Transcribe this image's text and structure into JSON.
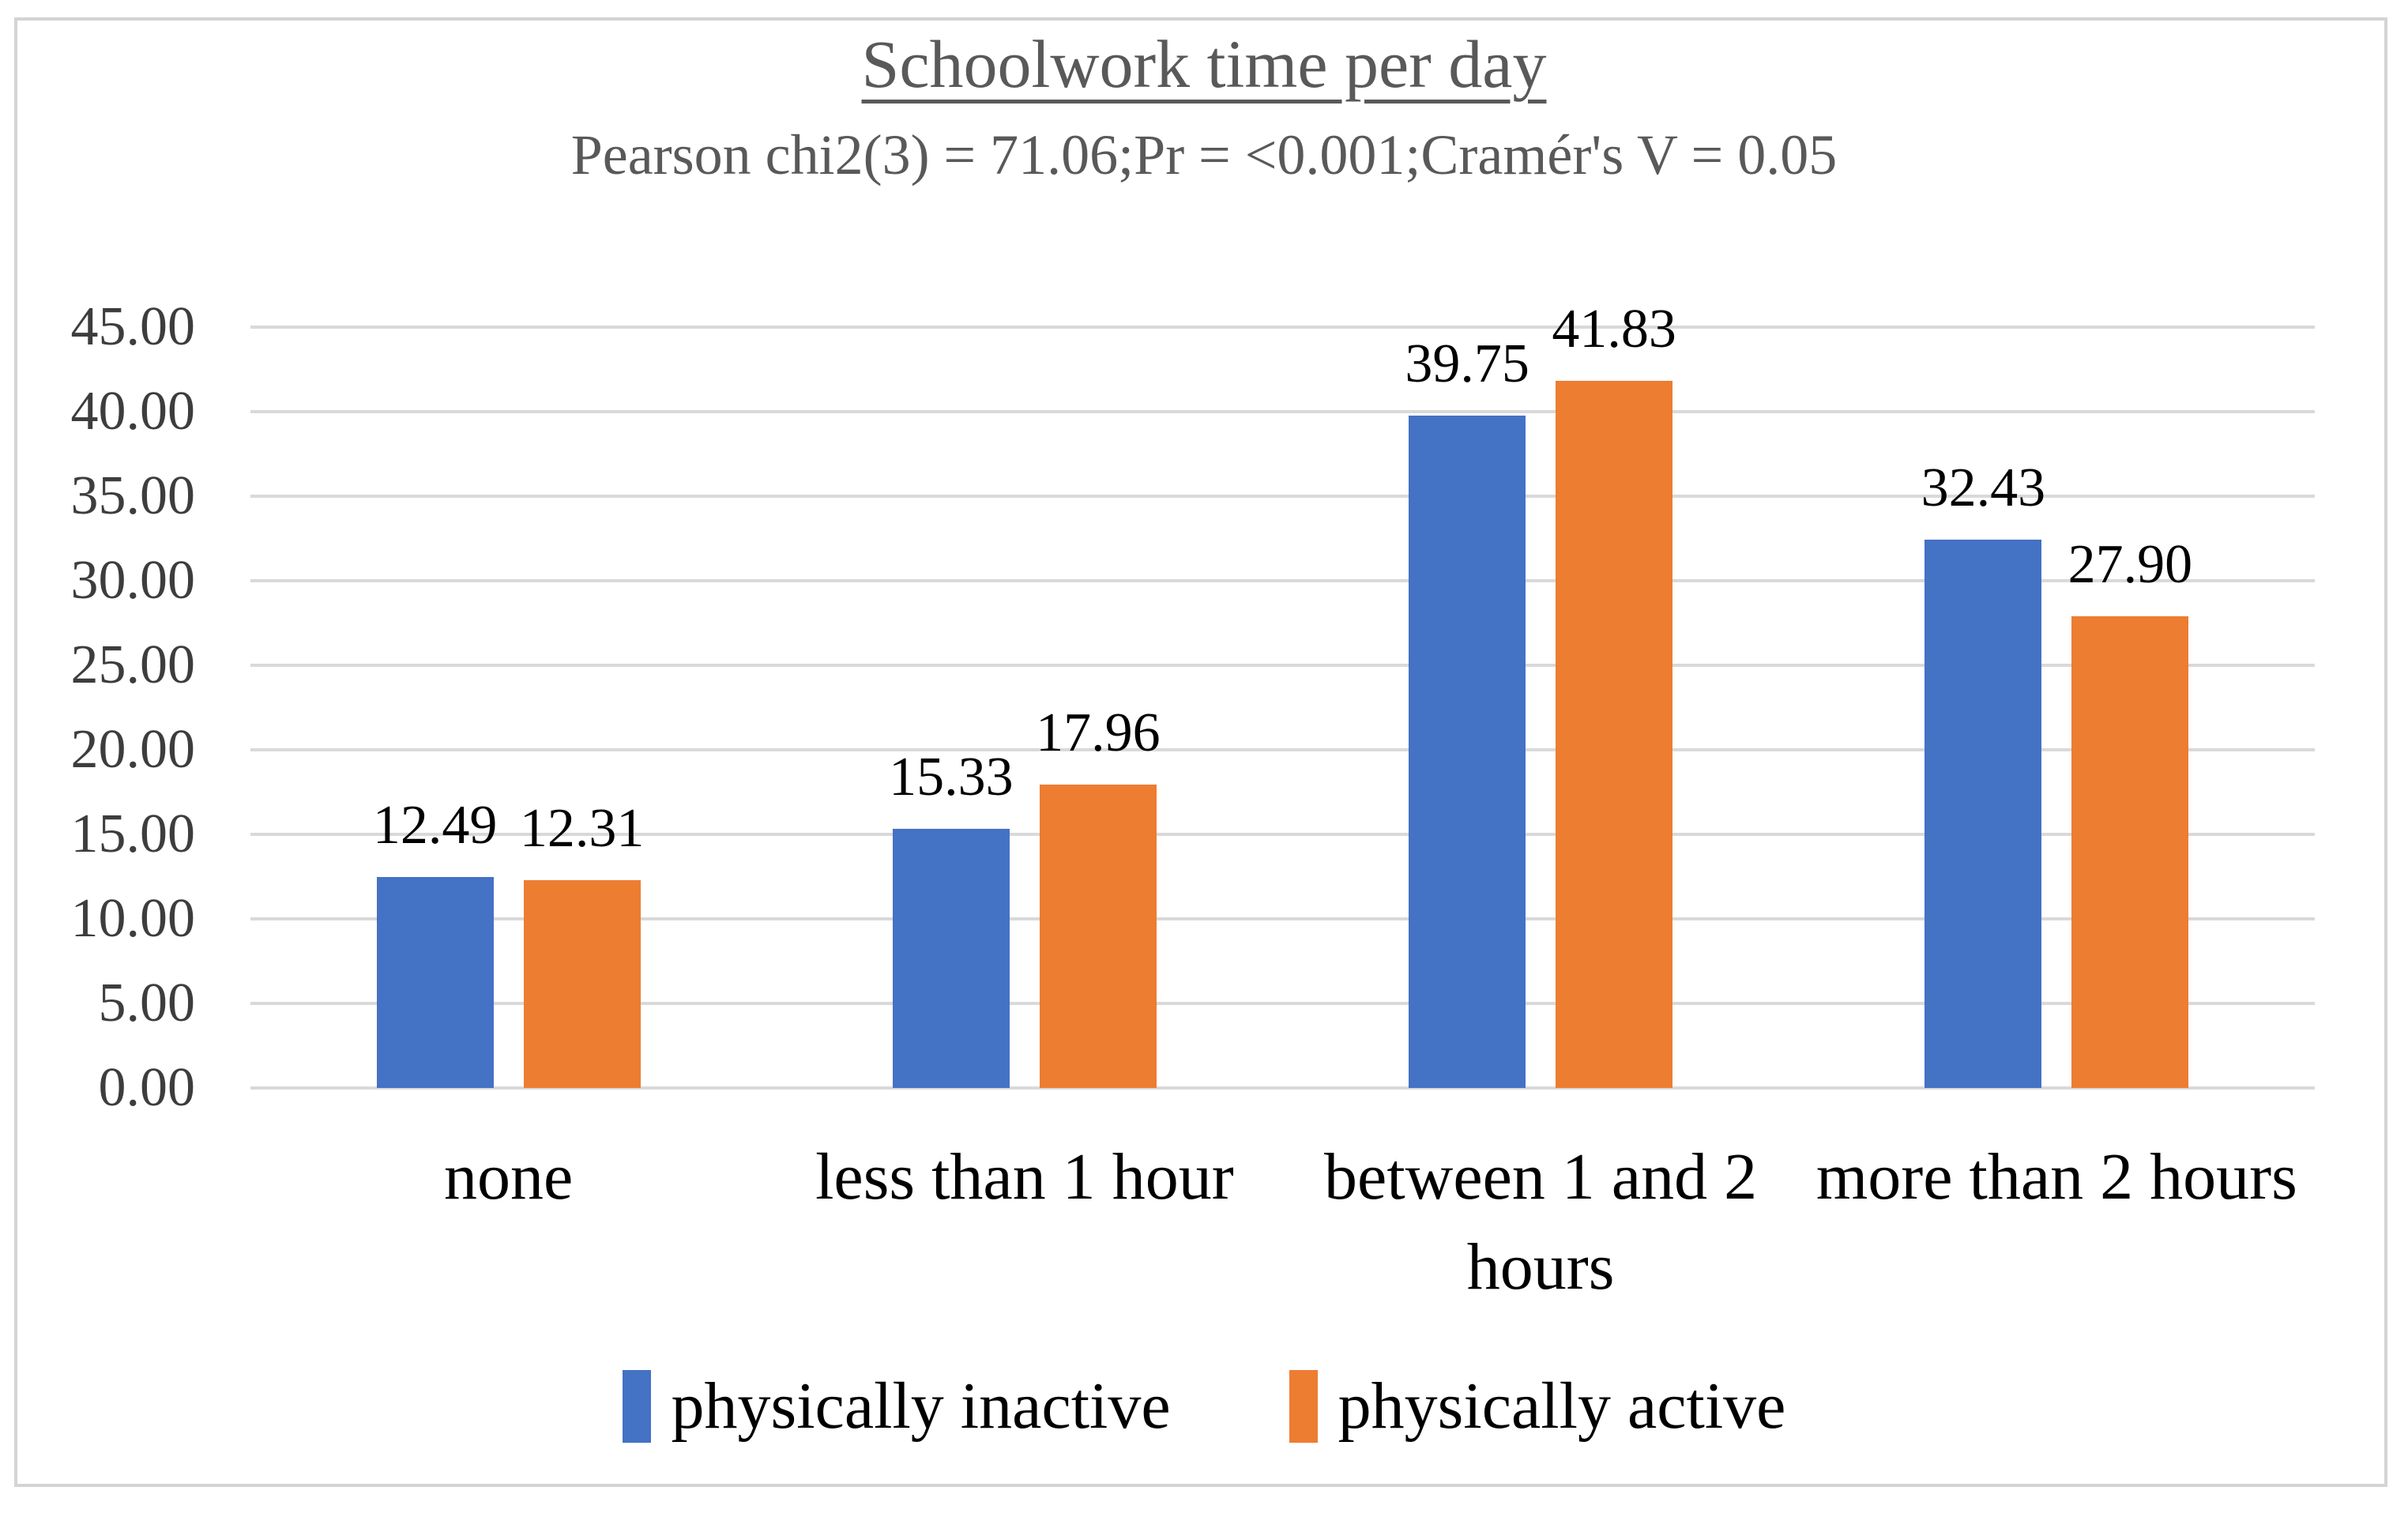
{
  "chart_data": {
    "type": "bar",
    "title": "Schoolwork time per day",
    "subtitle": "Pearson chi2(3) = 71.06;Pr = <0.001;Cramér's V = 0.05",
    "categories": [
      "none",
      "less than 1 hour",
      "between 1 and 2\nhours",
      "more than 2 hours"
    ],
    "series": [
      {
        "name": "physically inactive",
        "color": "#4472C4",
        "values": [
          12.49,
          15.33,
          39.75,
          32.43
        ]
      },
      {
        "name": "physically active",
        "color": "#ED7D31",
        "values": [
          12.31,
          17.96,
          41.83,
          27.9
        ]
      }
    ],
    "ylim": [
      0,
      45
    ],
    "yticks": [
      "0.00",
      "5.00",
      "10.00",
      "15.00",
      "20.00",
      "25.00",
      "30.00",
      "35.00",
      "40.00",
      "45.00"
    ],
    "grid": true,
    "legend_position": "bottom",
    "value_labels": "outside-end",
    "value_label_decimals": 2,
    "colors": {
      "gridline": "#D9D9D9",
      "axis_text": "#3D3D3D",
      "title_text": "#595959",
      "label_text": "#000000",
      "frame_border": "#D4D4D4"
    }
  }
}
